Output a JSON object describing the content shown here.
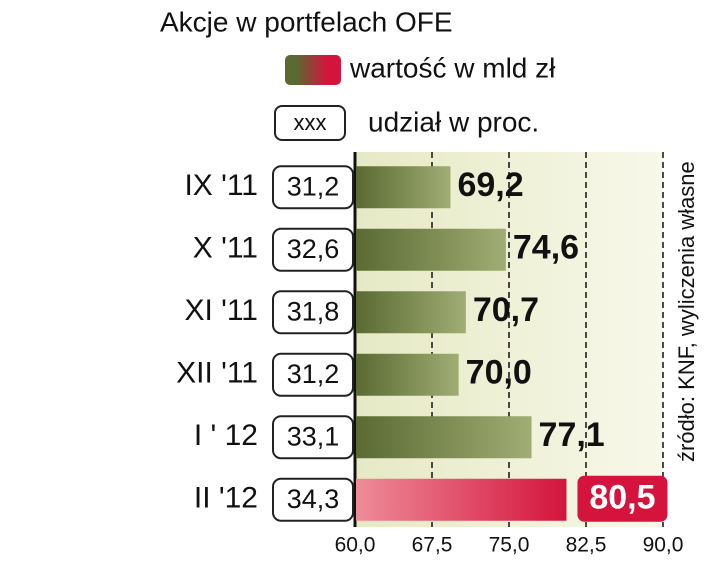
{
  "chart_data": {
    "type": "hbar",
    "title": "Akcje w portfelach OFE",
    "categories": [
      "IX '11",
      "X '11",
      "XI '11",
      "XII '11",
      "I ' 12",
      "II '12"
    ],
    "series": [
      {
        "name": "wartość w mld zł",
        "color": "#5a6a32",
        "highlight_color": "#d4143c",
        "values": [
          69.2,
          74.6,
          70.7,
          70.0,
          77.1,
          80.5
        ],
        "value_labels": [
          "69,2",
          "74,6",
          "70,7",
          "70,0",
          "77,1",
          "80,5"
        ]
      },
      {
        "name": "udział w proc.",
        "sample_label": "xxx",
        "values": [
          31.2,
          32.6,
          31.8,
          31.2,
          33.1,
          34.3
        ],
        "value_labels": [
          "31,2",
          "32,6",
          "31,8",
          "31,2",
          "33,1",
          "34,3"
        ]
      }
    ],
    "xlim": [
      60,
      90
    ],
    "xticks": [
      {
        "value": 60,
        "label": "60,0"
      },
      {
        "value": 67.5,
        "label": "67,5"
      },
      {
        "value": 75,
        "label": "75,0"
      },
      {
        "value": 82.5,
        "label": "82,5"
      },
      {
        "value": 90,
        "label": "90,0"
      }
    ],
    "grid": true,
    "source": "źródło: KNF, wyliczenia własne"
  }
}
